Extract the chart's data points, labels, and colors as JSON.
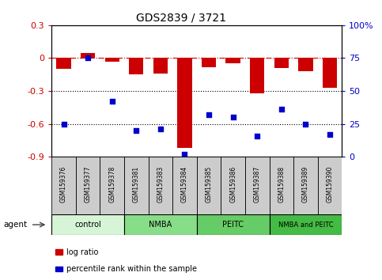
{
  "title": "GDS2839 / 3721",
  "samples": [
    "GSM159376",
    "GSM159377",
    "GSM159378",
    "GSM159381",
    "GSM159383",
    "GSM159384",
    "GSM159385",
    "GSM159386",
    "GSM159387",
    "GSM159388",
    "GSM159389",
    "GSM159390"
  ],
  "log_ratio": [
    -0.1,
    0.05,
    -0.03,
    -0.15,
    -0.14,
    -0.82,
    -0.08,
    -0.05,
    -0.32,
    -0.09,
    -0.12,
    -0.27
  ],
  "percentile_rank": [
    25,
    75,
    42,
    20,
    21,
    2,
    32,
    30,
    16,
    36,
    25,
    17
  ],
  "groups": [
    {
      "label": "control",
      "start": 0,
      "end": 3,
      "color": "#d6f5d6"
    },
    {
      "label": "NMBA",
      "start": 3,
      "end": 6,
      "color": "#88dd88"
    },
    {
      "label": "PEITC",
      "start": 6,
      "end": 9,
      "color": "#66cc66"
    },
    {
      "label": "NMBA and PEITC",
      "start": 9,
      "end": 12,
      "color": "#44bb44"
    }
  ],
  "bar_color": "#cc0000",
  "dot_color": "#0000cc",
  "ylim_left": [
    -0.9,
    0.3
  ],
  "ylim_right": [
    0,
    100
  ],
  "hline_y": 0,
  "dotted_lines": [
    -0.3,
    -0.6
  ],
  "right_ticks": [
    0,
    25,
    50,
    75,
    100
  ],
  "left_ticks": [
    -0.9,
    -0.6,
    -0.3,
    0,
    0.3
  ],
  "background_color": "#ffffff",
  "plot_bg_color": "#ffffff",
  "tick_label_color_left": "#cc0000",
  "tick_label_color_right": "#0000cc",
  "agent_label": "agent",
  "legend_log_ratio": "log ratio",
  "legend_pct": "percentile rank within the sample",
  "sample_box_color": "#cccccc",
  "figsize": [
    4.83,
    3.54
  ],
  "dpi": 100
}
